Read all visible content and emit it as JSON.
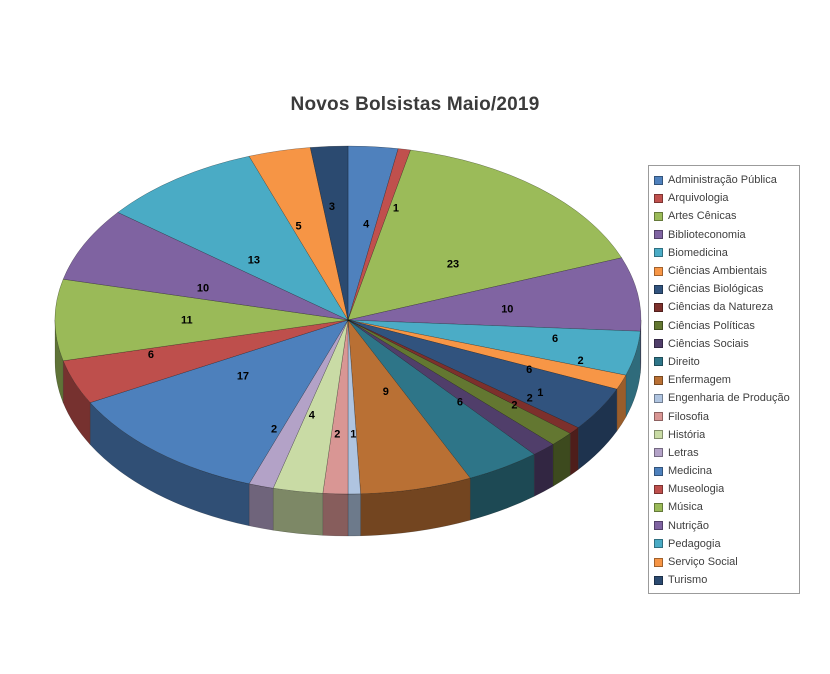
{
  "title": "Novos Bolsistas Maio/2019",
  "chart_data": {
    "type": "pie",
    "style": "3d-pie",
    "title": "Novos Bolsistas Maio/2019",
    "legend_position": "right",
    "data_labels": "values",
    "start_angle_deg": 0,
    "direction": "clockwise",
    "total": 146,
    "categories": [
      "Administração Pública",
      "Arquivologia",
      "Artes Cênicas",
      "Biblioteconomia",
      "Biomedicina",
      "Ciências Ambientais",
      "Ciências Biológicas",
      "Ciências da Natureza",
      "Ciências Políticas",
      "Ciências Sociais",
      "Direito",
      "Enfermagem",
      "Engenharia de Produção",
      "Filosofia",
      "História",
      "Letras",
      "Medicina",
      "Museologia",
      "Música",
      "Nutrição",
      "Pedagogia",
      "Serviço Social",
      "Turismo"
    ],
    "values": [
      4,
      1,
      23,
      10,
      6,
      2,
      6,
      1,
      2,
      2,
      6,
      9,
      1,
      2,
      4,
      2,
      17,
      6,
      11,
      10,
      13,
      5,
      3
    ],
    "colors": [
      "#4F81BD",
      "#C0504D",
      "#9BBB59",
      "#8064A2",
      "#4BACC6",
      "#F79646",
      "#31537E",
      "#7D302C",
      "#637731",
      "#503E6A",
      "#2E7588",
      "#B97034",
      "#AFC4E0",
      "#D99694",
      "#C9DBA5",
      "#B3A2C7",
      "#4D80BC",
      "#BE4F4C",
      "#9ABA58",
      "#7F63A1",
      "#4AABC5",
      "#F69545",
      "#2B4A70"
    ]
  }
}
